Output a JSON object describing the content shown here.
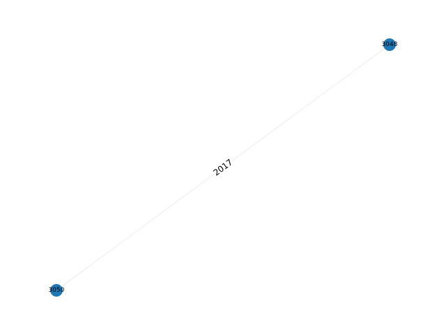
{
  "graph": {
    "nodes": [
      {
        "id": "3048",
        "label": "3048",
        "color": "#1f77b4"
      },
      {
        "id": "3050",
        "label": "3050",
        "color": "#1f77b4"
      }
    ],
    "edges": [
      {
        "source": "3050",
        "target": "3048",
        "label": "2017",
        "color": "#f2f2f2"
      }
    ],
    "label_background": "#ffffff"
  }
}
